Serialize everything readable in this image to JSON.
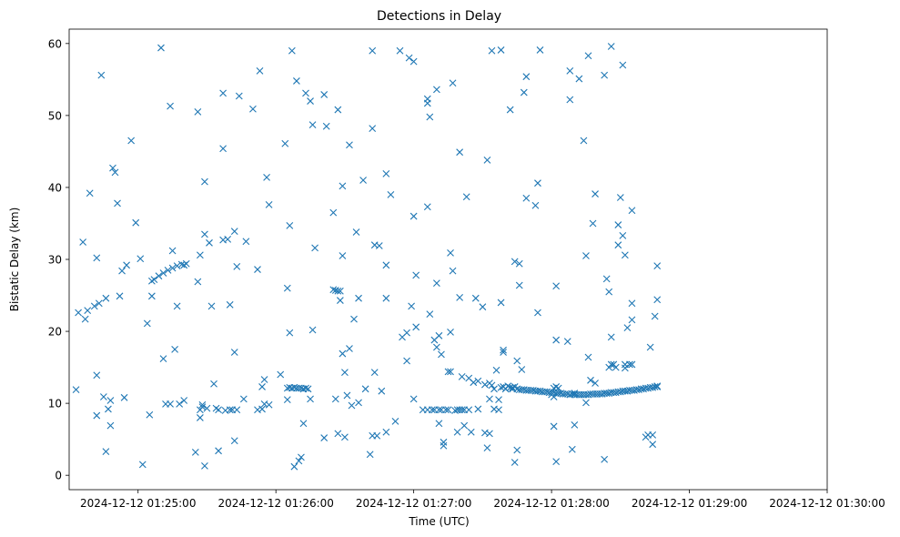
{
  "chart_data": {
    "type": "scatter",
    "title": "Detections in Delay",
    "xlabel": "Time (UTC)",
    "ylabel": "Bistatic Delay (km)",
    "marker": "x",
    "color": "#1f77b4",
    "xlim_seconds": [
      -30,
      300
    ],
    "ylim": [
      -2,
      62
    ],
    "x_origin": "2024-12-12 01:25:00",
    "x_units": "seconds after 01:25:00",
    "x_ticks": [
      0,
      60,
      120,
      180,
      240,
      300
    ],
    "x_tick_labels": [
      "2024-12-12 01:25:00",
      "2024-12-12 01:26:00",
      "2024-12-12 01:27:00",
      "2024-12-12 01:28:00",
      "2024-12-12 01:29:00",
      "2024-12-12 01:30:00"
    ],
    "y_ticks": [
      0,
      10,
      20,
      30,
      40,
      50,
      60
    ],
    "y_tick_labels": [
      "0",
      "10",
      "20",
      "30",
      "40",
      "50",
      "60"
    ],
    "points": [
      [
        -27,
        11.9
      ],
      [
        -26,
        22.6
      ],
      [
        -24,
        32.4
      ],
      [
        -23,
        21.7
      ],
      [
        -22,
        22.9
      ],
      [
        -21,
        39.2
      ],
      [
        -19,
        23.5
      ],
      [
        -18,
        30.2
      ],
      [
        -18,
        13.9
      ],
      [
        -18,
        8.3
      ],
      [
        -17,
        23.9
      ],
      [
        -16,
        55.6
      ],
      [
        -15,
        10.9
      ],
      [
        -14,
        24.6
      ],
      [
        -14,
        3.3
      ],
      [
        -13,
        9.2
      ],
      [
        -12,
        10.4
      ],
      [
        -12,
        6.9
      ],
      [
        -11,
        42.7
      ],
      [
        -10,
        42.1
      ],
      [
        -9,
        37.8
      ],
      [
        -8,
        24.9
      ],
      [
        -7,
        28.4
      ],
      [
        -6,
        10.8
      ],
      [
        -5,
        29.2
      ],
      [
        -3,
        46.5
      ],
      [
        -1,
        35.1
      ],
      [
        1,
        30.1
      ],
      [
        2,
        1.5
      ],
      [
        4,
        21.1
      ],
      [
        5,
        8.4
      ],
      [
        6,
        27.0
      ],
      [
        6,
        24.9
      ],
      [
        7,
        27.2
      ],
      [
        9,
        27.7
      ],
      [
        10,
        59.4
      ],
      [
        11,
        28.1
      ],
      [
        11,
        16.2
      ],
      [
        12,
        9.9
      ],
      [
        13,
        28.5
      ],
      [
        14,
        51.3
      ],
      [
        14,
        9.9
      ],
      [
        15,
        31.2
      ],
      [
        15,
        28.8
      ],
      [
        16,
        17.5
      ],
      [
        17,
        23.5
      ],
      [
        17,
        29.1
      ],
      [
        18,
        9.9
      ],
      [
        19,
        29.3
      ],
      [
        20,
        10.4
      ],
      [
        20,
        29.2
      ],
      [
        21,
        29.4
      ],
      [
        25,
        3.2
      ],
      [
        26,
        50.5
      ],
      [
        26,
        26.9
      ],
      [
        27,
        9.1
      ],
      [
        27,
        8.0
      ],
      [
        27,
        30.6
      ],
      [
        28,
        9.5
      ],
      [
        28,
        9.8
      ],
      [
        29,
        33.5
      ],
      [
        29,
        1.3
      ],
      [
        29,
        40.8
      ],
      [
        30,
        9.3
      ],
      [
        31,
        32.3
      ],
      [
        32,
        23.5
      ],
      [
        33,
        12.7
      ],
      [
        34,
        9.3
      ],
      [
        35,
        3.4
      ],
      [
        35,
        9.1
      ],
      [
        37,
        45.4
      ],
      [
        37,
        53.1
      ],
      [
        37,
        32.7
      ],
      [
        38,
        9.0
      ],
      [
        39,
        32.8
      ],
      [
        40,
        9.1
      ],
      [
        40,
        23.7
      ],
      [
        41,
        9.1
      ],
      [
        42,
        4.8
      ],
      [
        42,
        33.9
      ],
      [
        42,
        17.1
      ],
      [
        43,
        9.1
      ],
      [
        43,
        29.0
      ],
      [
        44,
        52.7
      ],
      [
        46,
        10.6
      ],
      [
        47,
        32.5
      ],
      [
        50,
        50.9
      ],
      [
        52,
        28.6
      ],
      [
        52,
        9.1
      ],
      [
        53,
        56.2
      ],
      [
        54,
        12.3
      ],
      [
        54,
        9.2
      ],
      [
        55,
        13.3
      ],
      [
        55,
        9.9
      ],
      [
        56,
        41.4
      ],
      [
        57,
        37.6
      ],
      [
        57,
        9.8
      ],
      [
        62,
        14.0
      ],
      [
        64,
        46.1
      ],
      [
        65,
        12.1
      ],
      [
        65,
        10.5
      ],
      [
        65,
        26.0
      ],
      [
        66,
        12.2
      ],
      [
        66,
        19.8
      ],
      [
        66,
        34.7
      ],
      [
        67,
        59.0
      ],
      [
        67,
        12.1
      ],
      [
        68,
        12.2
      ],
      [
        68,
        1.2
      ],
      [
        69,
        12.1
      ],
      [
        69,
        54.8
      ],
      [
        70,
        12.1
      ],
      [
        70,
        2.0
      ],
      [
        71,
        12.1
      ],
      [
        71,
        2.5
      ],
      [
        72,
        12.0
      ],
      [
        72,
        7.2
      ],
      [
        73,
        53.1
      ],
      [
        73,
        12.1
      ],
      [
        74,
        12.0
      ],
      [
        75,
        52.0
      ],
      [
        75,
        10.6
      ],
      [
        76,
        20.2
      ],
      [
        76,
        48.7
      ],
      [
        77,
        31.6
      ],
      [
        81,
        52.9
      ],
      [
        81,
        5.2
      ],
      [
        82,
        48.5
      ],
      [
        85,
        25.8
      ],
      [
        85,
        36.5
      ],
      [
        86,
        25.7
      ],
      [
        86,
        10.6
      ],
      [
        87,
        25.6
      ],
      [
        87,
        5.8
      ],
      [
        87,
        50.8
      ],
      [
        88,
        24.3
      ],
      [
        88,
        25.6
      ],
      [
        89,
        40.2
      ],
      [
        89,
        30.5
      ],
      [
        89,
        16.9
      ],
      [
        90,
        14.3
      ],
      [
        90,
        5.3
      ],
      [
        91,
        11.1
      ],
      [
        92,
        17.6
      ],
      [
        92,
        45.9
      ],
      [
        93,
        9.7
      ],
      [
        94,
        21.7
      ],
      [
        95,
        33.8
      ],
      [
        96,
        24.6
      ],
      [
        96,
        10.1
      ],
      [
        98,
        41.0
      ],
      [
        99,
        12.0
      ],
      [
        101,
        2.9
      ],
      [
        102,
        5.5
      ],
      [
        102,
        59.0
      ],
      [
        102,
        48.2
      ],
      [
        103,
        14.3
      ],
      [
        103,
        32.0
      ],
      [
        104,
        5.5
      ],
      [
        105,
        31.9
      ],
      [
        106,
        11.7
      ],
      [
        108,
        41.9
      ],
      [
        108,
        6.0
      ],
      [
        108,
        29.2
      ],
      [
        108,
        24.6
      ],
      [
        110,
        39.0
      ],
      [
        112,
        7.5
      ],
      [
        114,
        59.0
      ],
      [
        115,
        19.2
      ],
      [
        117,
        19.8
      ],
      [
        117,
        15.9
      ],
      [
        118,
        58.0
      ],
      [
        119,
        23.5
      ],
      [
        120,
        10.6
      ],
      [
        120,
        57.5
      ],
      [
        120,
        36.0
      ],
      [
        121,
        27.8
      ],
      [
        121,
        20.6
      ],
      [
        124,
        9.1
      ],
      [
        126,
        9.1
      ],
      [
        126,
        51.7
      ],
      [
        126,
        52.3
      ],
      [
        126,
        37.3
      ],
      [
        127,
        49.8
      ],
      [
        127,
        22.4
      ],
      [
        128,
        9.1
      ],
      [
        129,
        18.8
      ],
      [
        129,
        9.1
      ],
      [
        130,
        26.7
      ],
      [
        130,
        17.8
      ],
      [
        130,
        53.6
      ],
      [
        131,
        9.1
      ],
      [
        131,
        19.4
      ],
      [
        131,
        7.2
      ],
      [
        132,
        9.1
      ],
      [
        132,
        16.8
      ],
      [
        133,
        4.6
      ],
      [
        133,
        4.1
      ],
      [
        134,
        9.1
      ],
      [
        135,
        14.4
      ],
      [
        135,
        9.1
      ],
      [
        136,
        30.9
      ],
      [
        136,
        19.9
      ],
      [
        136,
        14.4
      ],
      [
        137,
        28.4
      ],
      [
        137,
        54.5
      ],
      [
        138,
        9.0
      ],
      [
        139,
        6.0
      ],
      [
        139,
        9.1
      ],
      [
        140,
        9.1
      ],
      [
        140,
        44.9
      ],
      [
        140,
        24.7
      ],
      [
        141,
        13.7
      ],
      [
        141,
        9.1
      ],
      [
        142,
        6.9
      ],
      [
        142,
        9.1
      ],
      [
        143,
        38.7
      ],
      [
        144,
        9.1
      ],
      [
        144,
        13.5
      ],
      [
        145,
        6.0
      ],
      [
        146,
        12.9
      ],
      [
        147,
        24.6
      ],
      [
        148,
        13.1
      ],
      [
        148,
        9.2
      ],
      [
        150,
        23.4
      ],
      [
        151,
        12.6
      ],
      [
        151,
        5.9
      ],
      [
        152,
        3.8
      ],
      [
        152,
        43.8
      ],
      [
        153,
        10.6
      ],
      [
        153,
        5.8
      ],
      [
        153,
        12.8
      ],
      [
        154,
        59.0
      ],
      [
        154,
        12.5
      ],
      [
        155,
        9.2
      ],
      [
        155,
        12.0
      ],
      [
        156,
        14.6
      ],
      [
        157,
        10.5
      ],
      [
        157,
        9.1
      ],
      [
        158,
        12.2
      ],
      [
        158,
        24.0
      ],
      [
        158,
        59.1
      ],
      [
        159,
        17.4
      ],
      [
        159,
        17.1
      ],
      [
        159,
        12.3
      ],
      [
        160,
        12.0
      ],
      [
        161,
        12.4
      ],
      [
        162,
        12.2
      ],
      [
        162,
        50.8
      ],
      [
        163,
        12.2
      ],
      [
        163,
        12.0
      ],
      [
        164,
        12.3
      ],
      [
        164,
        1.8
      ],
      [
        164,
        29.7
      ],
      [
        165,
        12.0
      ],
      [
        165,
        15.9
      ],
      [
        165,
        3.5
      ],
      [
        166,
        11.9
      ],
      [
        166,
        26.4
      ],
      [
        166,
        29.4
      ],
      [
        167,
        14.7
      ],
      [
        167,
        11.9
      ],
      [
        168,
        53.2
      ],
      [
        168,
        11.9
      ],
      [
        169,
        38.5
      ],
      [
        169,
        55.4
      ],
      [
        169,
        11.8
      ],
      [
        170,
        11.8
      ],
      [
        171,
        11.8
      ],
      [
        172,
        11.8
      ],
      [
        173,
        37.5
      ],
      [
        173,
        11.7
      ],
      [
        174,
        40.6
      ],
      [
        174,
        22.6
      ],
      [
        174,
        11.7
      ],
      [
        175,
        59.1
      ],
      [
        175,
        11.7
      ],
      [
        176,
        11.6
      ],
      [
        177,
        11.6
      ],
      [
        178,
        11.6
      ],
      [
        179,
        11.5
      ],
      [
        180,
        11.5
      ],
      [
        180,
        11.2
      ],
      [
        181,
        11.5
      ],
      [
        181,
        12.1
      ],
      [
        181,
        10.9
      ],
      [
        181,
        6.8
      ],
      [
        182,
        1.9
      ],
      [
        182,
        11.4
      ],
      [
        182,
        18.8
      ],
      [
        182,
        12.3
      ],
      [
        182,
        26.3
      ],
      [
        183,
        11.4
      ],
      [
        183,
        12.1
      ],
      [
        184,
        11.4
      ],
      [
        185,
        11.3
      ],
      [
        186,
        11.3
      ],
      [
        187,
        11.3
      ],
      [
        187,
        18.6
      ],
      [
        188,
        11.2
      ],
      [
        188,
        52.2
      ],
      [
        188,
        56.2
      ],
      [
        189,
        11.3
      ],
      [
        189,
        3.6
      ],
      [
        190,
        11.2
      ],
      [
        190,
        7.0
      ],
      [
        190,
        11.4
      ],
      [
        191,
        11.2
      ],
      [
        192,
        11.2
      ],
      [
        192,
        55.1
      ],
      [
        193,
        11.2
      ],
      [
        194,
        11.2
      ],
      [
        194,
        46.5
      ],
      [
        195,
        11.2
      ],
      [
        195,
        10.1
      ],
      [
        195,
        30.5
      ],
      [
        196,
        11.2
      ],
      [
        196,
        58.3
      ],
      [
        196,
        16.4
      ],
      [
        197,
        13.2
      ],
      [
        197,
        11.3
      ],
      [
        198,
        11.3
      ],
      [
        198,
        35.0
      ],
      [
        199,
        39.1
      ],
      [
        199,
        12.8
      ],
      [
        199,
        11.3
      ],
      [
        200,
        11.3
      ],
      [
        201,
        11.3
      ],
      [
        202,
        11.3
      ],
      [
        203,
        55.6
      ],
      [
        203,
        2.2
      ],
      [
        203,
        11.4
      ],
      [
        204,
        11.4
      ],
      [
        204,
        27.3
      ],
      [
        205,
        11.4
      ],
      [
        205,
        15.0
      ],
      [
        205,
        25.5
      ],
      [
        206,
        59.6
      ],
      [
        206,
        15.4
      ],
      [
        206,
        11.5
      ],
      [
        206,
        19.2
      ],
      [
        207,
        11.5
      ],
      [
        207,
        15.4
      ],
      [
        208,
        11.5
      ],
      [
        208,
        15.0
      ],
      [
        209,
        11.6
      ],
      [
        209,
        34.8
      ],
      [
        209,
        32.0
      ],
      [
        210,
        11.6
      ],
      [
        210,
        38.6
      ],
      [
        211,
        11.7
      ],
      [
        211,
        57.0
      ],
      [
        211,
        33.3
      ],
      [
        212,
        11.7
      ],
      [
        212,
        30.6
      ],
      [
        212,
        15.4
      ],
      [
        212,
        14.9
      ],
      [
        213,
        11.7
      ],
      [
        213,
        20.5
      ],
      [
        214,
        11.8
      ],
      [
        214,
        15.4
      ],
      [
        215,
        11.8
      ],
      [
        215,
        15.4
      ],
      [
        215,
        21.6
      ],
      [
        215,
        36.8
      ],
      [
        215,
        23.9
      ],
      [
        216,
        11.8
      ],
      [
        217,
        11.9
      ],
      [
        218,
        11.9
      ],
      [
        219,
        12.0
      ],
      [
        220,
        12.0
      ],
      [
        221,
        12.1
      ],
      [
        221,
        5.3
      ],
      [
        222,
        12.1
      ],
      [
        222,
        5.6
      ],
      [
        223,
        17.8
      ],
      [
        223,
        12.2
      ],
      [
        224,
        12.2
      ],
      [
        224,
        4.3
      ],
      [
        224,
        5.6
      ],
      [
        225,
        12.3
      ],
      [
        225,
        22.1
      ],
      [
        226,
        12.3
      ],
      [
        226,
        12.4
      ],
      [
        226,
        24.4
      ],
      [
        226,
        29.1
      ]
    ]
  }
}
